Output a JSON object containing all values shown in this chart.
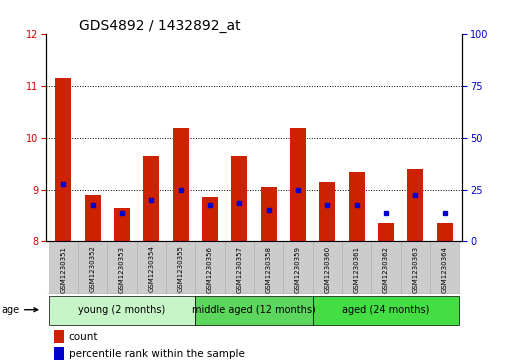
{
  "title": "GDS4892 / 1432892_at",
  "samples": [
    "GSM1230351",
    "GSM1230352",
    "GSM1230353",
    "GSM1230354",
    "GSM1230355",
    "GSM1230356",
    "GSM1230357",
    "GSM1230358",
    "GSM1230359",
    "GSM1230360",
    "GSM1230361",
    "GSM1230362",
    "GSM1230363",
    "GSM1230364"
  ],
  "red_values": [
    11.15,
    8.9,
    8.65,
    9.65,
    10.2,
    8.85,
    9.65,
    9.05,
    10.2,
    9.15,
    9.35,
    8.35,
    9.4,
    8.35
  ],
  "blue_values": [
    9.1,
    8.7,
    8.55,
    8.8,
    9.0,
    8.7,
    8.75,
    8.6,
    9.0,
    8.7,
    8.7,
    8.55,
    8.9,
    8.55
  ],
  "ylim": [
    8,
    12
  ],
  "y_left_ticks": [
    8,
    9,
    10,
    11,
    12
  ],
  "y_right_ticks": [
    0,
    25,
    50,
    75,
    100
  ],
  "y_left_color": "#cc0000",
  "y_right_color": "#0000cc",
  "red_color": "#cc2200",
  "blue_color": "#0000cc",
  "bar_bottom": 8.0,
  "group_boundaries": [
    {
      "start": 0,
      "end": 5,
      "label": "young (2 months)",
      "color": "#c8f5c8"
    },
    {
      "start": 5,
      "end": 9,
      "label": "middle aged (12 months)",
      "color": "#5cd65c"
    },
    {
      "start": 9,
      "end": 14,
      "label": "aged (24 months)",
      "color": "#44dd44"
    }
  ],
  "dotted_lines": [
    9,
    10,
    11
  ],
  "bar_width": 0.55,
  "title_fontsize": 10,
  "tick_fontsize": 7,
  "xtick_fontsize": 5,
  "group_fontsize": 7,
  "legend_fontsize": 7.5,
  "gray_box_color": "#cccccc",
  "gray_box_edge": "#aaaaaa"
}
